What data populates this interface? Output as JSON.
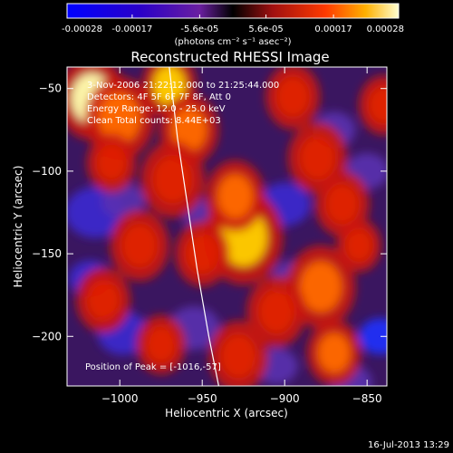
{
  "colorbar": {
    "ticks": [
      {
        "value": -0.00028,
        "label": "-0.00028"
      },
      {
        "value": -0.00017,
        "label": "-0.00017"
      },
      {
        "value": -5.6e-05,
        "label": "-5.6e-05"
      },
      {
        "value": 5.6e-05,
        "label": "5.6e-05"
      },
      {
        "value": 0.00017,
        "label": "0.00017"
      },
      {
        "value": 0.00028,
        "label": "0.00028"
      }
    ],
    "range": [
      -0.00028,
      0.00028
    ],
    "units": "(photons cm⁻² s⁻¹ asec⁻²)"
  },
  "chart_data": {
    "type": "heatmap",
    "title": "Reconstructed RHESSI Image",
    "xlabel": "Heliocentric X (arcsec)",
    "ylabel": "Heliocentric Y (arcsec)",
    "xlim": [
      -1032,
      -838
    ],
    "ylim": [
      -230,
      -37
    ],
    "xticks": [
      {
        "value": -1000,
        "label": "−1000"
      },
      {
        "value": -950,
        "label": "−950"
      },
      {
        "value": -900,
        "label": "−900"
      },
      {
        "value": -850,
        "label": "−850"
      }
    ],
    "yticks": [
      {
        "value": -50,
        "label": "−50"
      },
      {
        "value": -100,
        "label": "−100"
      },
      {
        "value": -150,
        "label": "−150"
      },
      {
        "value": -200,
        "label": "−200"
      }
    ],
    "limb": [
      [
        -970,
        -37
      ],
      [
        -965,
        -80
      ],
      [
        -959,
        -120
      ],
      [
        -953,
        -160
      ],
      [
        -946,
        -200
      ],
      [
        -940,
        -230
      ]
    ],
    "sources": [
      {
        "x": -1017,
        "y": -56,
        "r": 14,
        "v": 1.0
      },
      {
        "x": -1000,
        "y": -68,
        "r": 14,
        "v": 0.75
      },
      {
        "x": -970,
        "y": -48,
        "r": 11,
        "v": 0.85
      },
      {
        "x": -958,
        "y": -75,
        "r": 12,
        "v": 0.6
      },
      {
        "x": -968,
        "y": -105,
        "r": 13,
        "v": 0.55
      },
      {
        "x": -925,
        "y": -140,
        "r": 16,
        "v": 0.9
      },
      {
        "x": -930,
        "y": -115,
        "r": 12,
        "v": 0.6
      },
      {
        "x": -950,
        "y": -150,
        "r": 11,
        "v": 0.55
      },
      {
        "x": -880,
        "y": -92,
        "r": 12,
        "v": 0.55
      },
      {
        "x": -895,
        "y": -55,
        "r": 11,
        "v": 0.5
      },
      {
        "x": -865,
        "y": -120,
        "r": 11,
        "v": 0.55
      },
      {
        "x": -878,
        "y": -170,
        "r": 14,
        "v": 0.65
      },
      {
        "x": -905,
        "y": -185,
        "r": 12,
        "v": 0.45
      },
      {
        "x": -988,
        "y": -145,
        "r": 12,
        "v": 0.5
      },
      {
        "x": -1005,
        "y": -95,
        "r": 10,
        "v": 0.4
      },
      {
        "x": -1010,
        "y": -178,
        "r": 11,
        "v": 0.45
      },
      {
        "x": -975,
        "y": -205,
        "r": 10,
        "v": 0.4
      },
      {
        "x": -928,
        "y": -212,
        "r": 12,
        "v": 0.55
      },
      {
        "x": -870,
        "y": -210,
        "r": 11,
        "v": 0.6
      },
      {
        "x": -855,
        "y": -145,
        "r": 9,
        "v": 0.45
      },
      {
        "x": -840,
        "y": -60,
        "r": 10,
        "v": 0.5
      }
    ],
    "holes": [
      {
        "x": -1015,
        "y": -125,
        "r": 14,
        "v": -0.7
      },
      {
        "x": -998,
        "y": -118,
        "r": 10,
        "v": -0.6
      },
      {
        "x": -1018,
        "y": -165,
        "r": 10,
        "v": -0.7
      },
      {
        "x": -998,
        "y": -198,
        "r": 12,
        "v": -0.75
      },
      {
        "x": -948,
        "y": -128,
        "r": 10,
        "v": -0.55
      },
      {
        "x": -955,
        "y": -195,
        "r": 12,
        "v": -0.6
      },
      {
        "x": -900,
        "y": -120,
        "r": 12,
        "v": -0.65
      },
      {
        "x": -895,
        "y": -165,
        "r": 10,
        "v": -0.55
      },
      {
        "x": -905,
        "y": -218,
        "r": 10,
        "v": -0.6
      },
      {
        "x": -870,
        "y": -75,
        "r": 10,
        "v": -0.55
      },
      {
        "x": -850,
        "y": -100,
        "r": 10,
        "v": -0.6
      },
      {
        "x": -842,
        "y": -200,
        "r": 10,
        "v": -0.8
      },
      {
        "x": -860,
        "y": -228,
        "r": 10,
        "v": -0.6
      }
    ]
  },
  "info": [
    "3-Nov-2006 21:22:12.000 to 21:25:44.000",
    "Detectors: 4F 5F 6F 7F 8F, Att 0",
    "Energy Range: 12.0 - 25.0 keV",
    "Clean    Total counts: 8.44E+03"
  ],
  "peak": "Position of Peak = [-1016,-57]",
  "timestamp": "16-Jul-2013 13:29"
}
